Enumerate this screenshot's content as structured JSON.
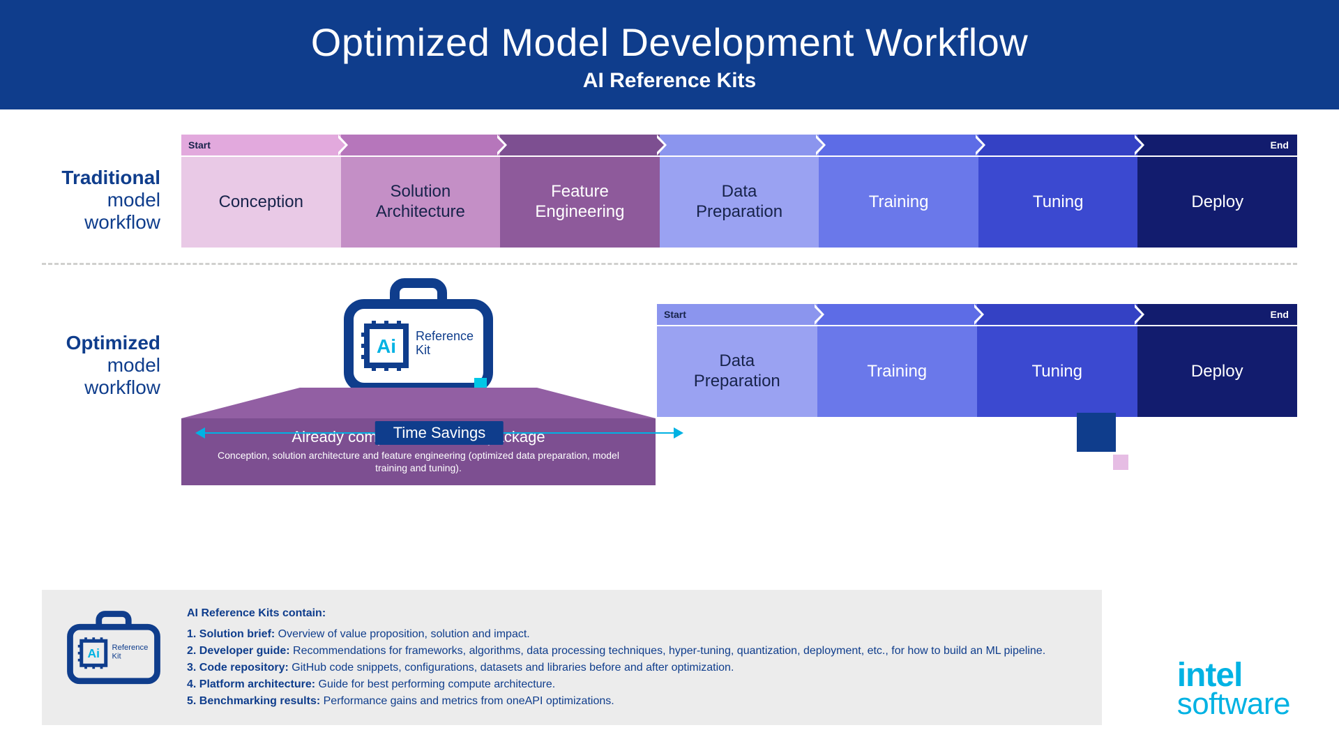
{
  "header": {
    "title": "Optimized Model Development Workflow",
    "subtitle": "AI Reference Kits",
    "bg": "#0f3d8c"
  },
  "labels": {
    "start": "Start",
    "end": "End",
    "traditional_bold": "Traditional",
    "traditional_light1": "model",
    "traditional_light2": "workflow",
    "optimized_bold": "Optimized",
    "optimized_light1": "model",
    "optimized_light2": "workflow"
  },
  "traditional": {
    "stages": [
      {
        "label": "Conception",
        "block": "#e9c9e6",
        "arrow": "#e2a9dd",
        "text": "#17234a"
      },
      {
        "label": "Solution\nArchitecture",
        "block": "#c48fc6",
        "arrow": "#b676bb",
        "text": "#17234a"
      },
      {
        "label": "Feature\nEngineering",
        "block": "#8e5a9b",
        "arrow": "#7d4f91",
        "text": "#ffffff"
      },
      {
        "label": "Data\nPreparation",
        "block": "#9aa2f2",
        "arrow": "#8b95ee",
        "text": "#17234a"
      },
      {
        "label": "Training",
        "block": "#6a78ea",
        "arrow": "#5d6ce6",
        "text": "#ffffff"
      },
      {
        "label": "Tuning",
        "block": "#3b49d0",
        "arrow": "#3441c4",
        "text": "#ffffff"
      },
      {
        "label": "Deploy",
        "block": "#121c6e",
        "arrow": "#121c6e",
        "text": "#ffffff"
      }
    ]
  },
  "optimized": {
    "stages": [
      {
        "label": "Data\nPreparation",
        "block": "#9aa2f2",
        "arrow": "#8b95ee",
        "text": "#17234a"
      },
      {
        "label": "Training",
        "block": "#6a78ea",
        "arrow": "#5d6ce6",
        "text": "#ffffff"
      },
      {
        "label": "Tuning",
        "block": "#3b49d0",
        "arrow": "#3441c4",
        "text": "#ffffff"
      },
      {
        "label": "Deploy",
        "block": "#121c6e",
        "arrow": "#121c6e",
        "text": "#ffffff"
      }
    ]
  },
  "purple_box": {
    "title": "Already completed in starter package",
    "sub": "Conception, solution architecture and feature engineering (optimized data preparation, model training and tuning).",
    "trapezoid": "#925fa3",
    "box": "#7d4f91"
  },
  "kit_icon": {
    "line1": "Ai",
    "line2": "Reference",
    "line3": "Kit",
    "stroke": "#0f3d8c",
    "ai_color": "#00b2e3",
    "accent": "#00c7e6"
  },
  "time_savings": {
    "label": "Time Savings",
    "line_color": "#00b2e3",
    "label_bg": "#0f3d8c"
  },
  "footer": {
    "title": "AI Reference Kits contain:",
    "items": [
      {
        "num": "1.",
        "head": "Solution brief:",
        "body": "Overview of value proposition, solution and impact."
      },
      {
        "num": "2.",
        "head": "Developer guide:",
        "body": "Recommendations for frameworks, algorithms, data processing techniques, hyper-tuning, quantization, deployment, etc., for how to build an ML pipeline."
      },
      {
        "num": "3.",
        "head": "Code repository:",
        "body": "GitHub code snippets, configurations, datasets and libraries before and after optimization."
      },
      {
        "num": "4.",
        "head": "Platform architecture:",
        "body": "Guide for best performing compute architecture."
      },
      {
        "num": "5.",
        "head": "Benchmarking results:",
        "body": "Performance gains and metrics from oneAPI optimizations."
      }
    ],
    "bg": "#ececec",
    "text_color": "#0f3d8c"
  },
  "logo": {
    "intel": "intel",
    "software": "software",
    "color": "#00b2e3"
  },
  "decor": {
    "big_square": "#0f3d8c",
    "pink_square": "#e6bde4"
  }
}
